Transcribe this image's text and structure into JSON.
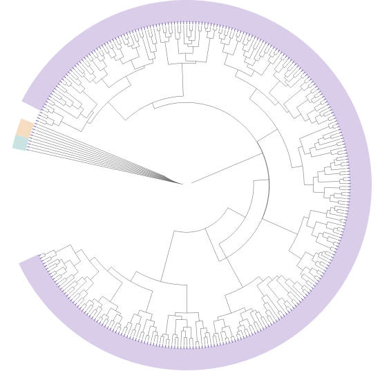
{
  "figure": {
    "type": "circular-phylogenetic-tree",
    "leaf_label_count": 300,
    "major_clade_color": "#d9cdea",
    "outgroup_band_colors": [
      "#f6dcc0",
      "#c9e3e3"
    ],
    "branch_color": "#4a4a4a",
    "leaf_label_color": "#6a5a9a"
  }
}
